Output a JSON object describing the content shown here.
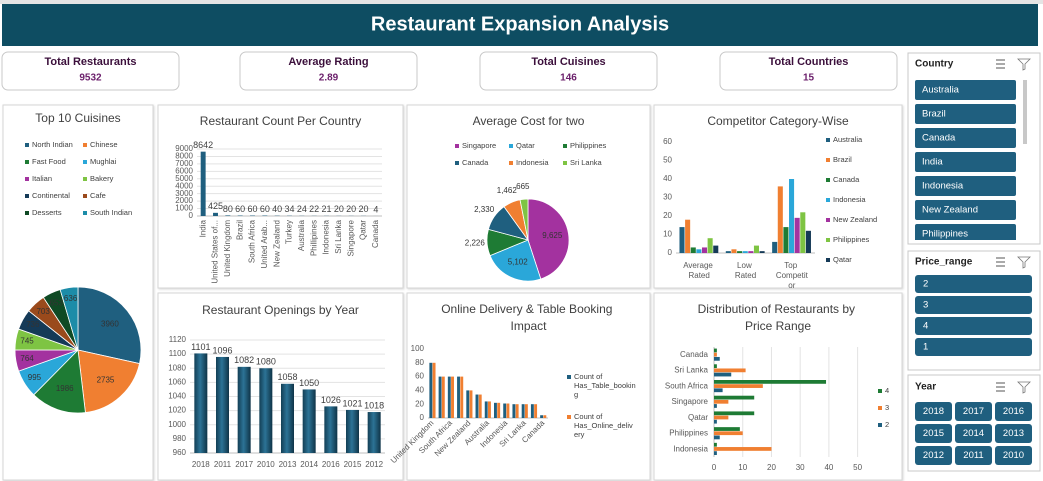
{
  "header": {
    "title": "Restaurant Expansion Analysis"
  },
  "kpis": [
    {
      "label": "Total Restaurants",
      "value": 9532
    },
    {
      "label": "Average Rating",
      "value": 2.89
    },
    {
      "label": "Total Cuisines",
      "value": 146
    },
    {
      "label": "Total Countries",
      "value": 15
    }
  ],
  "chart_data": [
    {
      "type": "pie",
      "title": "Top 10 Cuisines",
      "categories": [
        "North Indian",
        "Chinese",
        "Fast Food",
        "Mughlai",
        "Italian",
        "Bakery",
        "Continental",
        "Cafe",
        "Desserts",
        "South Indian"
      ],
      "values": [
        3960,
        2735,
        1986,
        995,
        764,
        745,
        736,
        703,
        653,
        636
      ],
      "colors": [
        "#1f5f7f",
        "#f07f31",
        "#1e7b34",
        "#2aa7d9",
        "#a3329f",
        "#7ec443",
        "#153a57",
        "#9a4a1c",
        "#0f4a24",
        "#1c8ca8"
      ]
    },
    {
      "type": "bar",
      "title": "Restaurant Count Per Country",
      "categories": [
        "India",
        "United States of...",
        "United Kingdom",
        "Brazil",
        "South Africa",
        "United Arab...",
        "New Zealand",
        "Turkey",
        "Australia",
        "Phillipines",
        "Indonesia",
        "Sri Lanka",
        "Singapore",
        "Qatar",
        "Canada"
      ],
      "values": [
        8642,
        425,
        80,
        60,
        60,
        60,
        40,
        34,
        24,
        22,
        21,
        20,
        20,
        20,
        4
      ],
      "color": "#1f5f7f",
      "ylim": [
        0,
        9000
      ],
      "yticks": [
        0,
        1000,
        2000,
        3000,
        4000,
        5000,
        6000,
        7000,
        8000,
        9000
      ],
      "grid": true,
      "data_labels": true
    },
    {
      "type": "pie",
      "title": "Average Cost for two",
      "categories": [
        "Singapore",
        "Qatar",
        "Philippines",
        "Canada",
        "Indonesia",
        "Sri Lanka"
      ],
      "values": [
        9625,
        5102,
        2226,
        2330,
        1462,
        665
      ],
      "value_labels": [
        "9,625",
        "5,102",
        "2,226",
        "2,330",
        "1,462",
        "665"
      ],
      "colors": [
        "#a3329f",
        "#2aa7d9",
        "#1e7b34",
        "#1f5f7f",
        "#f07f31",
        "#7ec443"
      ]
    },
    {
      "type": "bar",
      "title": "Competitor Category-Wise",
      "categories": [
        "Average Rated",
        "Low Rated",
        "Top Competitor"
      ],
      "series": [
        {
          "name": "Australia",
          "color": "#1f5f7f",
          "values": [
            14,
            1,
            6
          ]
        },
        {
          "name": "Brazil",
          "color": "#f07f31",
          "values": [
            18,
            2,
            36
          ]
        },
        {
          "name": "Canada",
          "color": "#1e7b34",
          "values": [
            3,
            1,
            14
          ]
        },
        {
          "name": "Indonesia",
          "color": "#2aa7d9",
          "values": [
            2,
            1,
            40
          ]
        },
        {
          "name": "New Zealand",
          "color": "#a3329f",
          "values": [
            3,
            1,
            19
          ]
        },
        {
          "name": "Philippines",
          "color": "#7ec443",
          "values": [
            8,
            4,
            22
          ]
        },
        {
          "name": "Qatar",
          "color": "#153a57",
          "values": [
            4,
            1,
            12
          ]
        }
      ],
      "ylim": [
        0,
        60
      ],
      "yticks": [
        0,
        10,
        20,
        30,
        40,
        50,
        60
      ],
      "grid": false
    },
    {
      "type": "bar",
      "title": "Restaurant Openings by Year",
      "categories": [
        "2018",
        "2011",
        "2017",
        "2010",
        "2013",
        "2014",
        "2016",
        "2015",
        "2012"
      ],
      "values": [
        1101,
        1096,
        1082,
        1080,
        1058,
        1050,
        1026,
        1021,
        1018
      ],
      "color": "#1f5f7f",
      "bar_shape": "cylinder",
      "ylim": [
        960,
        1120
      ],
      "yticks": [
        960,
        980,
        1000,
        1020,
        1040,
        1060,
        1080,
        1100,
        1120
      ],
      "grid": true,
      "data_labels": true
    },
    {
      "type": "bar",
      "title": "Online Delivery & Table Booking Impact",
      "categories": [
        "United Kingdom",
        null,
        "South Africa",
        null,
        "New Zealand",
        null,
        "Australia",
        null,
        "Indonesia",
        null,
        "Sri Lanka",
        null,
        "Canada"
      ],
      "series": [
        {
          "name": "Count of Has_Table_booking",
          "color": "#1f5f7f",
          "values": [
            80,
            60,
            60,
            60,
            40,
            34,
            24,
            22,
            21,
            20,
            20,
            20,
            4
          ]
        },
        {
          "name": "Count of Has_Online_delivery",
          "color": "#f07f31",
          "values": [
            80,
            60,
            60,
            60,
            40,
            34,
            24,
            22,
            21,
            20,
            20,
            20,
            4
          ]
        }
      ],
      "ylim": [
        0,
        100
      ],
      "yticks": [
        0,
        20,
        40,
        60,
        80,
        100
      ],
      "grid": false
    },
    {
      "type": "bar",
      "orientation": "horizontal",
      "title": "Distribution of Restaurants by Price Range",
      "categories": [
        "Canada",
        "Sri Lanka",
        "South Africa",
        "Singapore",
        "Qatar",
        "Philippines",
        "Indonesia"
      ],
      "series": [
        {
          "name": "4",
          "color": "#1e7b34",
          "values": [
            1,
            1,
            39,
            14,
            14,
            9,
            1
          ]
        },
        {
          "name": "3",
          "color": "#f07f31",
          "values": [
            1,
            11,
            17,
            5,
            5,
            10,
            20
          ]
        },
        {
          "name": "2",
          "color": "#1f5f7f",
          "values": [
            2,
            6,
            3,
            1,
            1,
            2,
            1
          ]
        }
      ],
      "xlim": [
        0,
        55
      ],
      "xticks": [
        0,
        10,
        20,
        30,
        40,
        50
      ],
      "grid": true
    }
  ],
  "slicers": [
    {
      "title": "Country",
      "items": [
        "Australia",
        "Brazil",
        "Canada",
        "India",
        "Indonesia",
        "New Zealand",
        "Philippines"
      ]
    },
    {
      "title": "Price_range",
      "items": [
        2,
        3,
        4,
        1
      ]
    },
    {
      "title": "Year",
      "items": [
        2018,
        2017,
        2016,
        2015,
        2014,
        2013,
        2012,
        2011,
        2010
      ]
    }
  ]
}
